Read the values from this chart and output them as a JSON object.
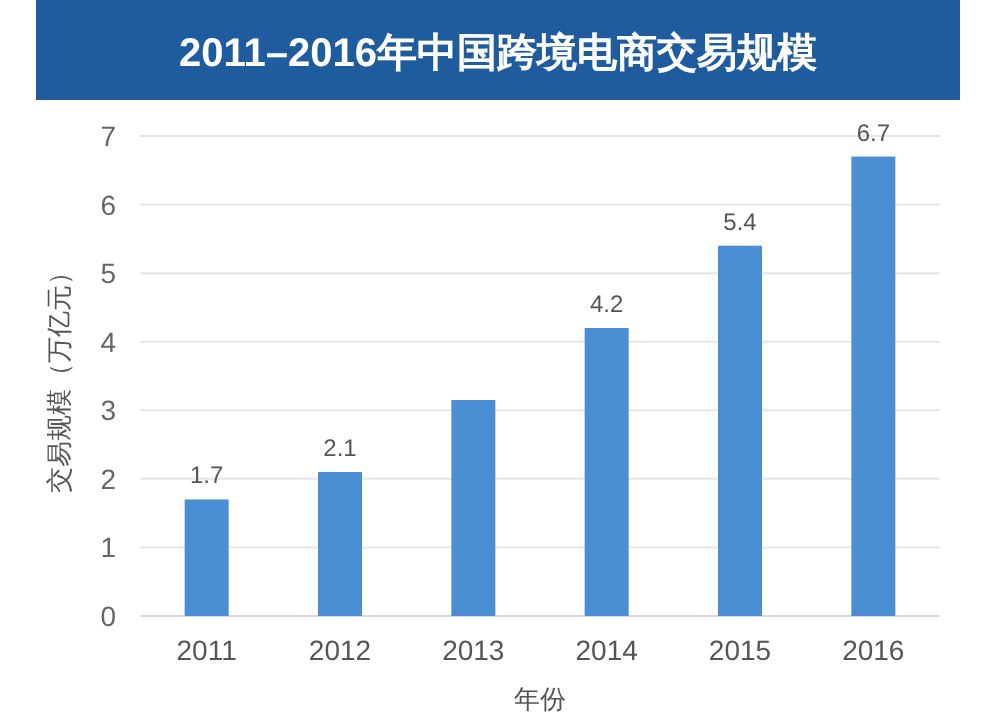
{
  "chart_data": {
    "type": "bar",
    "title": "2011–2016年中国跨境电商交易规模",
    "xlabel": "年份",
    "ylabel": "交易规模（万亿元）",
    "categories": [
      "2011",
      "2012",
      "2013",
      "2014",
      "2015",
      "2016"
    ],
    "values": [
      1.7,
      2.1,
      3.15,
      4.2,
      5.4,
      6.7
    ],
    "value_labels": [
      "1.7",
      "2.1",
      null,
      "4.2",
      "5.4",
      "6.7"
    ],
    "color": "#4a8fd4",
    "ylim": [
      0,
      7
    ],
    "yticks": [
      0,
      1,
      2,
      3,
      4,
      5,
      6,
      7
    ],
    "grid": "y"
  }
}
